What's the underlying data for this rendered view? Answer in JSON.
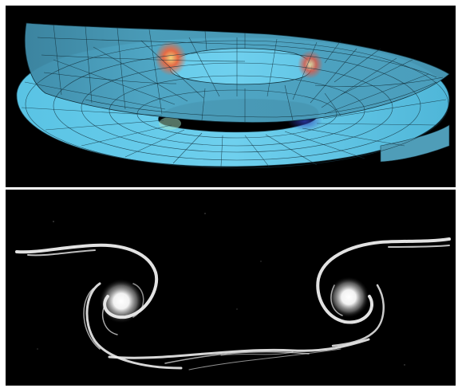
{
  "figure": {
    "panels": [
      {
        "id": "top",
        "depicts": "helicoidal-surface-render",
        "background": "#000000",
        "surface_color": "#5fc8e6",
        "warm_accent": "#e4563c",
        "cool_accent": "#3c4fc8"
      },
      {
        "id": "bottom",
        "depicts": "vortex-ring-photograph",
        "background": "#000000",
        "streak_color": "#f2f2f2"
      }
    ],
    "divider_color": "#ffffff"
  }
}
